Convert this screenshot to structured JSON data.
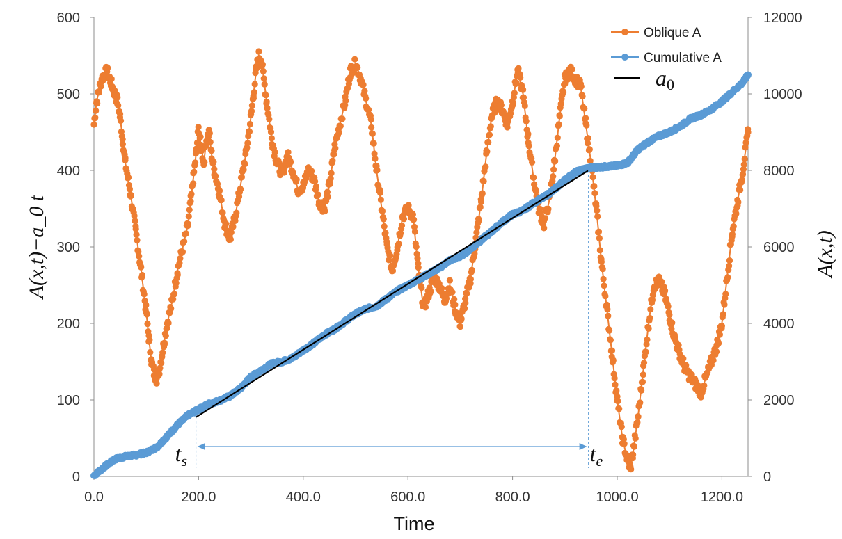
{
  "chart_data": {
    "type": "line",
    "xlabel": "Time",
    "ylabel_left": "A(x,t)−a_0 t",
    "ylabel_right": "A(x,t)",
    "xlim": [
      0,
      1250
    ],
    "ylim_left": [
      0,
      600
    ],
    "ylim_right": [
      0,
      12000
    ],
    "x_ticks": [
      "0.0",
      "200.0",
      "400.0",
      "600.0",
      "800.0",
      "1000.0",
      "1200.0"
    ],
    "y_left_ticks": [
      "0",
      "100",
      "200",
      "300",
      "400",
      "500",
      "600"
    ],
    "y_right_ticks": [
      "0",
      "2000",
      "4000",
      "6000",
      "8000",
      "10000",
      "12000"
    ],
    "legend": [
      "Oblique A",
      "Cumulative A",
      "a_0"
    ],
    "colors": {
      "oblique": "#ED7D31",
      "cumulative": "#5B9BD5",
      "fit": "#000000",
      "axis": "#8c8c8c",
      "arrow": "#5B9BD5"
    },
    "series": [
      {
        "name": "Oblique A",
        "axis": "left",
        "x": [
          0,
          5,
          10,
          15,
          20,
          25,
          30,
          35,
          40,
          45,
          50,
          55,
          60,
          70,
          80,
          90,
          100,
          105,
          110,
          115,
          120,
          125,
          130,
          135,
          140,
          150,
          160,
          170,
          180,
          185,
          190,
          195,
          200,
          205,
          210,
          215,
          220,
          225,
          230,
          240,
          250,
          260,
          270,
          280,
          290,
          300,
          305,
          310,
          315,
          320,
          330,
          340,
          350,
          360,
          370,
          380,
          390,
          400,
          410,
          420,
          430,
          440,
          450,
          460,
          470,
          480,
          490,
          500,
          510,
          520,
          530,
          540,
          550,
          560,
          570,
          580,
          590,
          600,
          610,
          620,
          630,
          640,
          650,
          660,
          670,
          680,
          690,
          700,
          710,
          720,
          730,
          740,
          750,
          760,
          770,
          780,
          790,
          800,
          810,
          820,
          830,
          840,
          850,
          860,
          870,
          880,
          890,
          900,
          910,
          920,
          930,
          940,
          950,
          960,
          970,
          980,
          990,
          1000,
          1010,
          1020,
          1025,
          1030,
          1040,
          1050,
          1060,
          1070,
          1080,
          1090,
          1100,
          1110,
          1120,
          1130,
          1140,
          1150,
          1160,
          1170,
          1180,
          1190,
          1200,
          1210,
          1220,
          1230,
          1240,
          1250
        ],
        "values": [
          460,
          490,
          505,
          520,
          525,
          530,
          520,
          510,
          500,
          490,
          470,
          440,
          410,
          370,
          320,
          270,
          215,
          180,
          150,
          135,
          128,
          140,
          160,
          180,
          200,
          230,
          270,
          300,
          330,
          360,
          390,
          420,
          455,
          430,
          410,
          440,
          450,
          420,
          400,
          370,
          330,
          310,
          340,
          380,
          420,
          470,
          500,
          530,
          550,
          545,
          490,
          440,
          410,
          395,
          420,
          400,
          375,
          380,
          400,
          390,
          360,
          350,
          380,
          430,
          460,
          490,
          530,
          540,
          520,
          490,
          460,
          400,
          350,
          300,
          270,
          300,
          340,
          350,
          340,
          270,
          220,
          240,
          260,
          250,
          230,
          250,
          220,
          200,
          230,
          260,
          310,
          360,
          420,
          470,
          490,
          480,
          460,
          490,
          530,
          500,
          440,
          390,
          350,
          330,
          360,
          410,
          470,
          520,
          530,
          520,
          510,
          460,
          410,
          350,
          280,
          220,
          160,
          100,
          50,
          20,
          10,
          30,
          80,
          140,
          200,
          250,
          255,
          240,
          210,
          180,
          160,
          140,
          130,
          120,
          110,
          130,
          150,
          170,
          200,
          260,
          320,
          360,
          400,
          450
        ]
      },
      {
        "name": "Cumulative A",
        "axis": "right",
        "x": [
          0,
          20,
          40,
          60,
          80,
          100,
          120,
          140,
          160,
          180,
          200,
          220,
          240,
          260,
          280,
          300,
          320,
          340,
          360,
          380,
          400,
          420,
          440,
          460,
          480,
          500,
          520,
          540,
          560,
          580,
          600,
          620,
          640,
          660,
          680,
          700,
          720,
          740,
          760,
          780,
          800,
          820,
          840,
          860,
          880,
          900,
          920,
          940,
          960,
          980,
          1000,
          1020,
          1040,
          1060,
          1080,
          1100,
          1120,
          1140,
          1160,
          1180,
          1200,
          1220,
          1240,
          1250
        ],
        "values": [
          20,
          250,
          450,
          520,
          560,
          620,
          760,
          1050,
          1350,
          1600,
          1750,
          1900,
          1980,
          2100,
          2300,
          2600,
          2780,
          2950,
          3000,
          3100,
          3300,
          3480,
          3700,
          3850,
          4050,
          4250,
          4380,
          4450,
          4650,
          4850,
          5000,
          5150,
          5300,
          5450,
          5650,
          5750,
          5950,
          6180,
          6400,
          6650,
          6850,
          6950,
          7150,
          7300,
          7500,
          7750,
          7950,
          8050,
          8080,
          8100,
          8120,
          8200,
          8550,
          8750,
          8900,
          9000,
          9150,
          9350,
          9450,
          9600,
          9800,
          10050,
          10300,
          10500
        ]
      },
      {
        "name": "a_0",
        "axis": "right",
        "x": [
          195,
          945
        ],
        "values": [
          1550,
          8000
        ]
      }
    ],
    "annotations": {
      "t_start_label": "t_s",
      "t_end_label": "t_e",
      "t_start": 195,
      "t_end": 945,
      "arrow": "double-headed between t_s and t_e"
    }
  }
}
